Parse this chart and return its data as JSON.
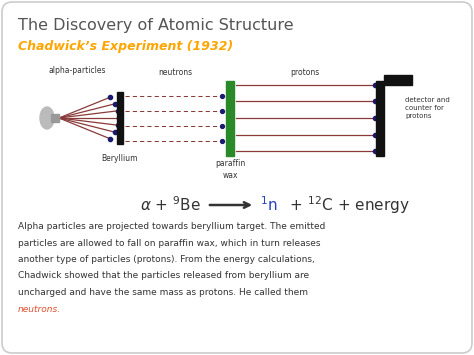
{
  "title": "The Discovery of Atomic Structure",
  "subtitle": "Chadwick’s Experiment (1932)",
  "title_color": "#555555",
  "subtitle_color": "#FFA500",
  "bg_color": "#ffffff",
  "neutrons_color": "#e05030",
  "label_alpha": "alpha-particles",
  "label_neutrons": "neutrons",
  "label_protons": "protons",
  "label_beryllium": "Beryllium",
  "label_paraffin": "paraffin\nwax",
  "label_detector": "detector and\ncounter for\nprotons",
  "body_line1": "Alpha particles are projected towards beryllium target. The emitted",
  "body_line2": "particles are allowed to fall on paraffin wax, which in turn releases",
  "body_line3": "another type of particles (protons). From the energy calculations,",
  "body_line4": "Chadwick showed that the particles released from beryllium are",
  "body_line5": "uncharged and have the same mass as protons. He called them",
  "body_line6": "neutrons.",
  "ray_color": "#8B3A3A",
  "dot_color": "#1a1a6e",
  "barrier_color": "#111111",
  "paraffin_color": "#2a8a2a",
  "eq_color": "#333333",
  "neutron_eq_color": "#2244bb"
}
